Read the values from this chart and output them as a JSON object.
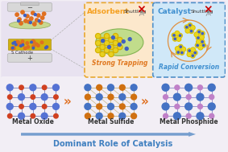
{
  "bg_color": "#f2eef5",
  "top_panel_color": "#e8e2f0",
  "title_text": "Dominant Role of Catalysis",
  "title_color": "#4080c0",
  "title_fontsize": 7.0,
  "labels": [
    "Metal Oxide",
    "Metal Sulfide",
    "Metal Phosphide"
  ],
  "label_color": "#333333",
  "label_fontsize": 5.5,
  "adsorbent_title": "Adsorbent",
  "adsorbent_color": "#f5a020",
  "catalyst_title": "Catalyst",
  "catalyst_color": "#4090d0",
  "strong_trapping_color": "#e07820",
  "rapid_conversion_color": "#4090d0",
  "box1_bg": "#fce8cc",
  "box1_edge": "#e8a830",
  "box2_bg": "#d0e8f8",
  "box2_edge": "#5090c8",
  "arrow_color": "#6090c8",
  "greater_than_color": "#e07020",
  "oxide_blue": "#5572d4",
  "oxide_red": "#d04020",
  "sulfide_blue": "#4472c4",
  "sulfide_orange": "#d07010",
  "phosphide_blue": "#4472c4",
  "phosphide_pink": "#c080c8",
  "s_cathode_label": "S Cathode",
  "yellow_s": "#e8c820",
  "blue_dot": "#4060c0",
  "orange_dot": "#e07020"
}
